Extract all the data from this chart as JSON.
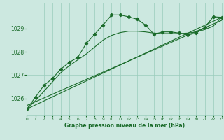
{
  "title": "Graphe pression niveau de la mer (hPa)",
  "bg_color": "#cce8e0",
  "grid_color": "#99ccbb",
  "line_color": "#1a6b2a",
  "x_min": 0,
  "x_max": 23,
  "y_min": 1025.3,
  "y_max": 1030.1,
  "y_ticks": [
    1026,
    1027,
    1028,
    1029
  ],
  "x_ticks": [
    0,
    1,
    2,
    3,
    4,
    5,
    6,
    7,
    8,
    9,
    10,
    11,
    12,
    13,
    14,
    15,
    16,
    17,
    18,
    19,
    20,
    21,
    22,
    23
  ],
  "series_main_x": [
    0,
    1,
    2,
    3,
    4,
    5,
    6,
    7,
    8,
    9,
    10,
    11,
    12,
    13,
    14,
    15,
    16,
    17,
    18,
    19,
    20,
    21,
    22,
    23
  ],
  "series_main_y": [
    1025.55,
    1026.05,
    1026.55,
    1026.85,
    1027.25,
    1027.55,
    1027.75,
    1028.35,
    1028.75,
    1029.15,
    1029.58,
    1029.58,
    1029.5,
    1029.4,
    1029.15,
    1028.75,
    1028.85,
    1028.85,
    1028.8,
    1028.72,
    1028.8,
    1029.05,
    1029.5,
    1029.48
  ],
  "series_smooth_x": [
    0,
    1,
    2,
    3,
    4,
    5,
    6,
    7,
    8,
    9,
    10,
    11,
    12,
    13,
    14,
    15,
    16,
    17,
    18,
    19,
    20,
    21,
    22,
    23
  ],
  "series_smooth_y": [
    1025.55,
    1025.9,
    1026.3,
    1026.7,
    1027.1,
    1027.4,
    1027.65,
    1027.9,
    1028.2,
    1028.5,
    1028.7,
    1028.82,
    1028.88,
    1028.88,
    1028.85,
    1028.8,
    1028.78,
    1028.78,
    1028.78,
    1028.8,
    1028.85,
    1028.95,
    1029.1,
    1029.48
  ],
  "series_line1_x": [
    0,
    23
  ],
  "series_line1_y": [
    1025.55,
    1029.48
  ],
  "series_line2_x": [
    0,
    23
  ],
  "series_line2_y": [
    1025.7,
    1029.35
  ]
}
